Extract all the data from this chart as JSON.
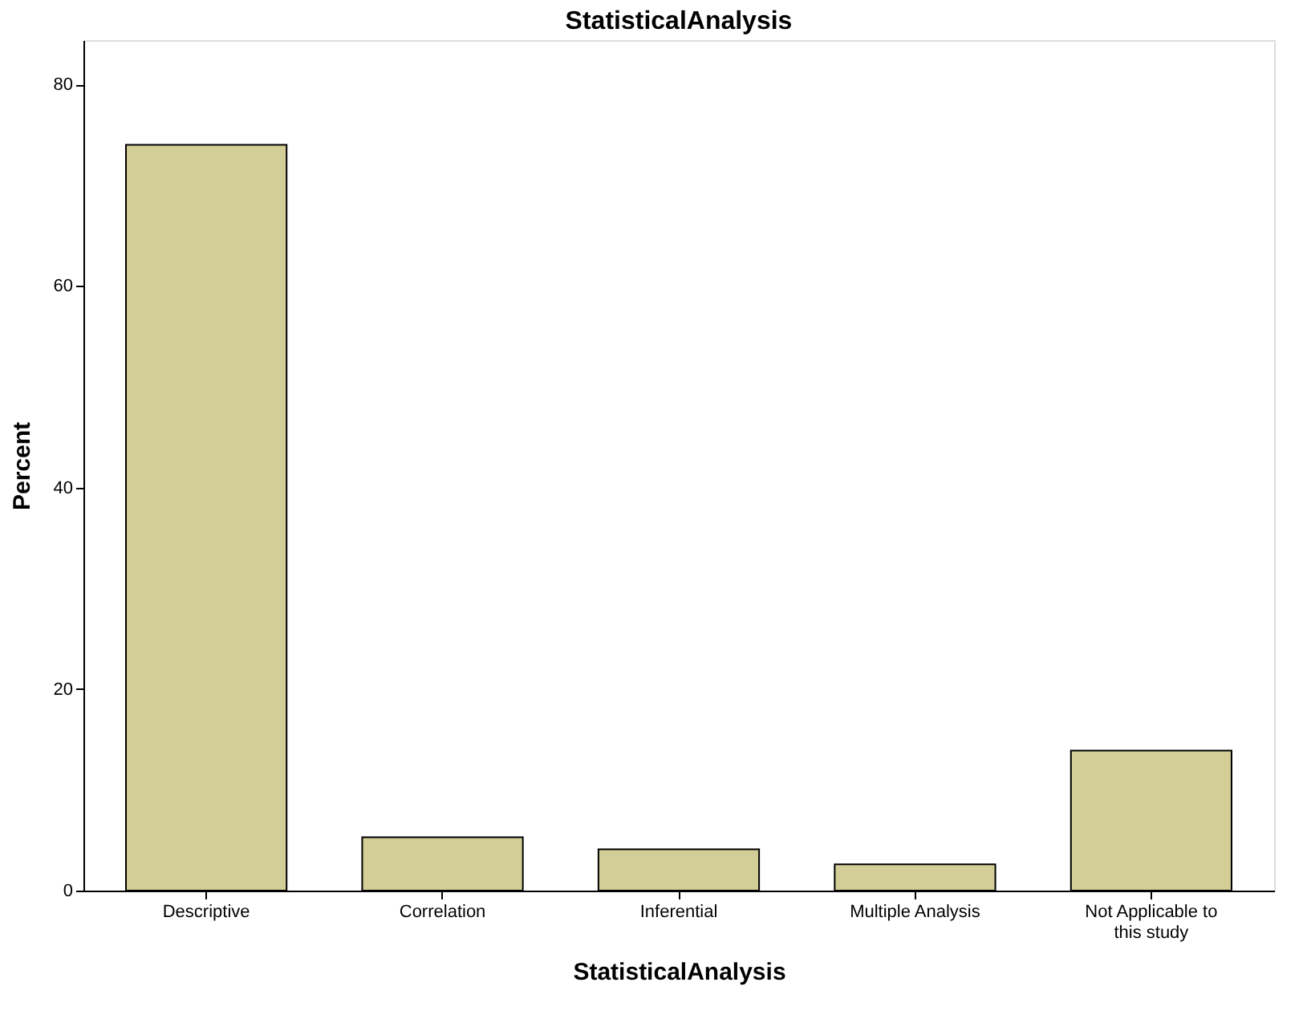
{
  "chart_data": {
    "type": "bar",
    "title": "StatisticalAnalysis",
    "xlabel": "StatisticalAnalysis",
    "ylabel": "Percent",
    "categories": [
      "Descriptive",
      "Correlation",
      "Inferential",
      "Multiple Analysis",
      "Not Applicable to this study"
    ],
    "values": [
      74.0,
      5.3,
      4.1,
      2.6,
      13.9
    ],
    "color": "#d3cd97",
    "ylim": [
      0,
      84.4
    ],
    "yticks": [
      0,
      20,
      40,
      60,
      80
    ],
    "grid": false,
    "legend": false
  }
}
